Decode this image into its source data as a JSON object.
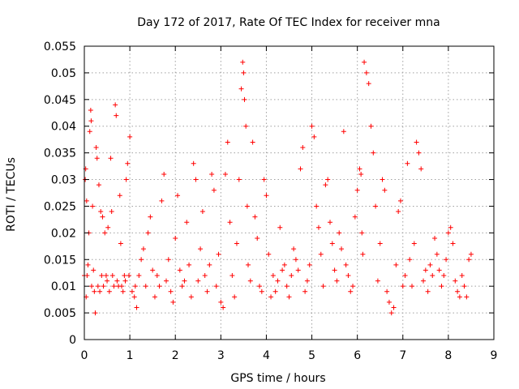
{
  "chart_data": {
    "type": "scatter",
    "title": "Day 172 of 2017, Rate Of TEC Index for receiver mna",
    "xlabel": "GPS time / hours",
    "ylabel": "ROTI / TECUs",
    "xlim": [
      0,
      9
    ],
    "ylim": [
      0,
      0.055
    ],
    "grid": true,
    "marker": "+",
    "color": "#ff0000",
    "x_ticks": [
      0,
      1,
      2,
      3,
      4,
      5,
      6,
      7,
      8,
      9
    ],
    "x_tick_labels": [
      "0",
      "1",
      "2",
      "3",
      "4",
      "5",
      "6",
      "7",
      "8",
      "9"
    ],
    "y_ticks": [
      0,
      0.005,
      0.01,
      0.015,
      0.02,
      0.025,
      0.03,
      0.035,
      0.04,
      0.045,
      0.05,
      0.055
    ],
    "y_tick_labels": [
      "0",
      "0.005",
      "0.01",
      "0.015",
      "0.02",
      "0.025",
      "0.03",
      "0.035",
      "0.04",
      "0.045",
      "0.05",
      "0.055"
    ],
    "series": [
      {
        "name": "ROTI",
        "x": [
          0.0,
          0.02,
          0.03,
          0.04,
          0.05,
          0.06,
          0.08,
          0.1,
          0.12,
          0.14,
          0.15,
          0.16,
          0.18,
          0.2,
          0.22,
          0.24,
          0.26,
          0.28,
          0.3,
          0.32,
          0.34,
          0.36,
          0.38,
          0.4,
          0.42,
          0.45,
          0.48,
          0.5,
          0.52,
          0.55,
          0.58,
          0.6,
          0.62,
          0.65,
          0.68,
          0.7,
          0.72,
          0.75,
          0.78,
          0.8,
          0.82,
          0.85,
          0.88,
          0.9,
          0.92,
          0.95,
          0.98,
          1.0,
          1.05,
          1.1,
          1.12,
          1.15,
          1.2,
          1.25,
          1.3,
          1.35,
          1.4,
          1.45,
          1.5,
          1.55,
          1.6,
          1.65,
          1.7,
          1.75,
          1.8,
          1.85,
          1.9,
          1.95,
          2.0,
          2.05,
          2.1,
          2.15,
          2.2,
          2.25,
          2.3,
          2.35,
          2.4,
          2.45,
          2.5,
          2.55,
          2.6,
          2.65,
          2.7,
          2.75,
          2.8,
          2.85,
          2.9,
          2.95,
          3.0,
          3.05,
          3.1,
          3.15,
          3.2,
          3.25,
          3.3,
          3.35,
          3.4,
          3.45,
          3.48,
          3.5,
          3.52,
          3.55,
          3.58,
          3.6,
          3.65,
          3.7,
          3.75,
          3.8,
          3.85,
          3.9,
          3.95,
          4.0,
          4.05,
          4.1,
          4.15,
          4.2,
          4.25,
          4.3,
          4.35,
          4.4,
          4.45,
          4.5,
          4.55,
          4.6,
          4.65,
          4.7,
          4.75,
          4.8,
          4.85,
          4.9,
          4.95,
          5.0,
          5.05,
          5.1,
          5.15,
          5.2,
          5.25,
          5.3,
          5.35,
          5.4,
          5.45,
          5.5,
          5.55,
          5.6,
          5.65,
          5.7,
          5.75,
          5.8,
          5.85,
          5.9,
          5.95,
          6.0,
          6.05,
          6.08,
          6.1,
          6.12,
          6.15,
          6.2,
          6.25,
          6.3,
          6.35,
          6.4,
          6.45,
          6.5,
          6.55,
          6.6,
          6.65,
          6.7,
          6.75,
          6.8,
          6.85,
          6.9,
          6.95,
          7.0,
          7.05,
          7.1,
          7.15,
          7.2,
          7.25,
          7.3,
          7.35,
          7.4,
          7.45,
          7.5,
          7.55,
          7.6,
          7.65,
          7.7,
          7.75,
          7.8,
          7.85,
          7.9,
          7.95,
          8.0,
          8.05,
          8.1,
          8.15,
          8.2,
          8.25,
          8.3,
          8.35,
          8.4,
          8.45,
          8.5
        ],
        "y": [
          0.012,
          0.03,
          0.032,
          0.008,
          0.026,
          0.012,
          0.014,
          0.02,
          0.039,
          0.043,
          0.041,
          0.01,
          0.025,
          0.013,
          0.009,
          0.005,
          0.036,
          0.034,
          0.01,
          0.029,
          0.009,
          0.024,
          0.012,
          0.023,
          0.01,
          0.02,
          0.012,
          0.011,
          0.021,
          0.009,
          0.034,
          0.024,
          0.012,
          0.01,
          0.044,
          0.042,
          0.011,
          0.01,
          0.027,
          0.018,
          0.01,
          0.009,
          0.012,
          0.011,
          0.03,
          0.033,
          0.012,
          0.038,
          0.009,
          0.008,
          0.01,
          0.006,
          0.012,
          0.015,
          0.017,
          0.01,
          0.02,
          0.023,
          0.013,
          0.008,
          0.012,
          0.01,
          0.026,
          0.031,
          0.011,
          0.015,
          0.009,
          0.007,
          0.019,
          0.027,
          0.013,
          0.01,
          0.011,
          0.022,
          0.014,
          0.008,
          0.033,
          0.03,
          0.011,
          0.017,
          0.024,
          0.012,
          0.009,
          0.014,
          0.031,
          0.028,
          0.01,
          0.016,
          0.007,
          0.006,
          0.031,
          0.037,
          0.022,
          0.012,
          0.008,
          0.018,
          0.03,
          0.047,
          0.052,
          0.05,
          0.045,
          0.04,
          0.025,
          0.014,
          0.011,
          0.037,
          0.023,
          0.019,
          0.01,
          0.009,
          0.03,
          0.027,
          0.016,
          0.008,
          0.012,
          0.009,
          0.011,
          0.021,
          0.013,
          0.014,
          0.01,
          0.008,
          0.012,
          0.017,
          0.015,
          0.013,
          0.032,
          0.036,
          0.009,
          0.011,
          0.014,
          0.04,
          0.038,
          0.025,
          0.021,
          0.016,
          0.01,
          0.029,
          0.03,
          0.022,
          0.018,
          0.013,
          0.011,
          0.02,
          0.017,
          0.039,
          0.014,
          0.012,
          0.009,
          0.01,
          0.023,
          0.028,
          0.032,
          0.031,
          0.02,
          0.016,
          0.052,
          0.05,
          0.048,
          0.04,
          0.035,
          0.025,
          0.011,
          0.018,
          0.03,
          0.028,
          0.009,
          0.007,
          0.005,
          0.006,
          0.014,
          0.024,
          0.026,
          0.01,
          0.012,
          0.033,
          0.015,
          0.01,
          0.018,
          0.037,
          0.035,
          0.032,
          0.011,
          0.013,
          0.009,
          0.014,
          0.012,
          0.019,
          0.016,
          0.013,
          0.01,
          0.012,
          0.015,
          0.02,
          0.021,
          0.018,
          0.011,
          0.009,
          0.008,
          0.012,
          0.01,
          0.008,
          0.015,
          0.016
        ]
      }
    ]
  }
}
